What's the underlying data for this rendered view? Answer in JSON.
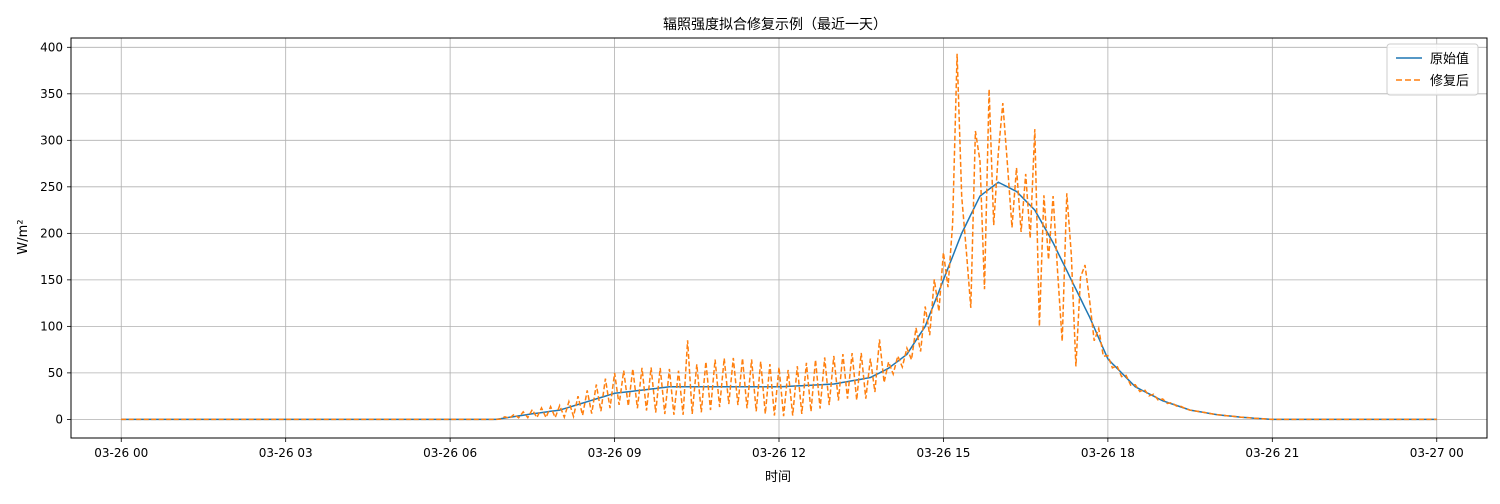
{
  "chart_data": {
    "type": "line",
    "title": "辐照强度拟合修复示例（最近一天）",
    "xlabel": "时间",
    "ylabel": "W/m²",
    "x_range": [
      "2024-03-26 00:00",
      "2024-03-27 00:00"
    ],
    "xlim": [
      "2024-03-25 23:05",
      "2024-03-27 00:55"
    ],
    "ylim": [
      -20,
      410
    ],
    "x_ticks": [
      "03-26 00",
      "03-26 03",
      "03-26 06",
      "03-26 09",
      "03-26 12",
      "03-26 15",
      "03-26 18",
      "03-26 21",
      "03-27 00"
    ],
    "y_ticks": [
      0,
      50,
      100,
      150,
      200,
      250,
      300,
      350,
      400
    ],
    "grid": true,
    "legend_position": "top-right",
    "sample_interval_minutes": 5,
    "series": [
      {
        "name": "原始值",
        "color": "#1f77b4",
        "style": "solid",
        "points": [
          [
            "2024-03-26 00:00",
            0
          ],
          [
            "2024-03-26 06:50",
            0
          ],
          [
            "2024-03-26 07:30",
            6
          ],
          [
            "2024-03-26 08:00",
            10
          ],
          [
            "2024-03-26 09:00",
            28
          ],
          [
            "2024-03-26 10:00",
            35
          ],
          [
            "2024-03-26 11:00",
            35
          ],
          [
            "2024-03-26 12:00",
            35
          ],
          [
            "2024-03-26 13:00",
            38
          ],
          [
            "2024-03-26 13:40",
            45
          ],
          [
            "2024-03-26 14:00",
            55
          ],
          [
            "2024-03-26 14:20",
            70
          ],
          [
            "2024-03-26 14:40",
            100
          ],
          [
            "2024-03-26 15:00",
            150
          ],
          [
            "2024-03-26 15:20",
            200
          ],
          [
            "2024-03-26 15:40",
            240
          ],
          [
            "2024-03-26 16:00",
            255
          ],
          [
            "2024-03-26 16:20",
            245
          ],
          [
            "2024-03-26 16:40",
            225
          ],
          [
            "2024-03-26 17:00",
            190
          ],
          [
            "2024-03-26 17:20",
            150
          ],
          [
            "2024-03-26 17:40",
            110
          ],
          [
            "2024-03-26 18:00",
            65
          ],
          [
            "2024-03-26 18:30",
            35
          ],
          [
            "2024-03-26 19:00",
            20
          ],
          [
            "2024-03-26 19:30",
            10
          ],
          [
            "2024-03-26 20:00",
            5
          ],
          [
            "2024-03-26 20:30",
            2
          ],
          [
            "2024-03-26 21:00",
            0
          ],
          [
            "2024-03-27 00:00",
            0
          ]
        ]
      },
      {
        "name": "修复后",
        "color": "#ff7f0e",
        "style": "dashed",
        "points": [
          [
            "2024-03-26 00:00",
            0
          ],
          [
            "2024-03-26 06:50",
            0
          ],
          [
            "2024-03-26 07:30",
            6
          ],
          [
            "2024-03-26 08:00",
            10
          ],
          [
            "2024-03-26 09:00",
            28
          ],
          [
            "2024-03-26 10:00",
            35
          ],
          [
            "2024-03-26 11:00",
            35
          ],
          [
            "2024-03-26 12:00",
            35
          ],
          [
            "2024-03-26 13:00",
            38
          ],
          [
            "2024-03-26 13:40",
            45
          ],
          [
            "2024-03-26 14:00",
            55
          ],
          [
            "2024-03-26 14:20",
            70
          ],
          [
            "2024-03-26 14:40",
            100
          ],
          [
            "2024-03-26 15:00",
            150
          ],
          [
            "2024-03-26 15:20",
            200
          ],
          [
            "2024-03-26 15:40",
            240
          ],
          [
            "2024-03-26 16:00",
            255
          ],
          [
            "2024-03-26 16:20",
            245
          ],
          [
            "2024-03-26 16:40",
            225
          ],
          [
            "2024-03-26 17:00",
            190
          ],
          [
            "2024-03-26 17:20",
            150
          ],
          [
            "2024-03-26 17:40",
            110
          ],
          [
            "2024-03-26 18:00",
            65
          ],
          [
            "2024-03-26 18:30",
            35
          ],
          [
            "2024-03-26 19:00",
            20
          ],
          [
            "2024-03-26 19:30",
            10
          ],
          [
            "2024-03-26 20:00",
            5
          ],
          [
            "2024-03-26 20:30",
            2
          ],
          [
            "2024-03-26 21:00",
            0
          ],
          [
            "2024-03-27 00:00",
            0
          ]
        ],
        "oscillation_amplitude": [
          [
            "2024-03-26 00:00",
            0
          ],
          [
            "2024-03-26 06:50",
            0
          ],
          [
            "2024-03-26 07:30",
            5
          ],
          [
            "2024-03-26 08:00",
            8
          ],
          [
            "2024-03-26 09:00",
            22
          ],
          [
            "2024-03-26 10:00",
            30
          ],
          [
            "2024-03-26 12:00",
            32
          ],
          [
            "2024-03-26 13:30",
            30
          ],
          [
            "2024-03-26 14:00",
            10
          ],
          [
            "2024-03-26 14:20",
            10
          ],
          [
            "2024-03-26 14:40",
            25
          ],
          [
            "2024-03-26 15:00",
            30
          ],
          [
            "2024-03-26 15:20",
            40
          ],
          [
            "2024-03-26 16:00",
            45
          ],
          [
            "2024-03-26 16:20",
            40
          ],
          [
            "2024-03-26 17:00",
            35
          ],
          [
            "2024-03-26 17:40",
            20
          ],
          [
            "2024-03-26 18:00",
            5
          ],
          [
            "2024-03-26 18:30",
            3
          ],
          [
            "2024-03-26 19:00",
            2
          ],
          [
            "2024-03-26 19:30",
            0
          ],
          [
            "2024-03-27 00:00",
            0
          ]
        ],
        "spikes": [
          [
            "2024-03-26 10:20",
            85
          ],
          [
            "2024-03-26 13:50",
            86
          ],
          [
            "2024-03-26 15:15",
            393
          ],
          [
            "2024-03-26 15:35",
            310
          ],
          [
            "2024-03-26 15:50",
            355
          ],
          [
            "2024-03-26 16:05",
            340
          ],
          [
            "2024-03-26 16:40",
            312
          ],
          [
            "2024-03-26 17:00",
            240
          ],
          [
            "2024-03-26 17:15",
            243
          ],
          [
            "2024-03-26 17:35",
            166
          ],
          [
            "2024-03-26 15:30",
            120
          ],
          [
            "2024-03-26 15:45",
            140
          ],
          [
            "2024-03-26 16:45",
            100
          ],
          [
            "2024-03-26 17:10",
            84
          ],
          [
            "2024-03-26 17:25",
            57
          ]
        ]
      }
    ]
  }
}
